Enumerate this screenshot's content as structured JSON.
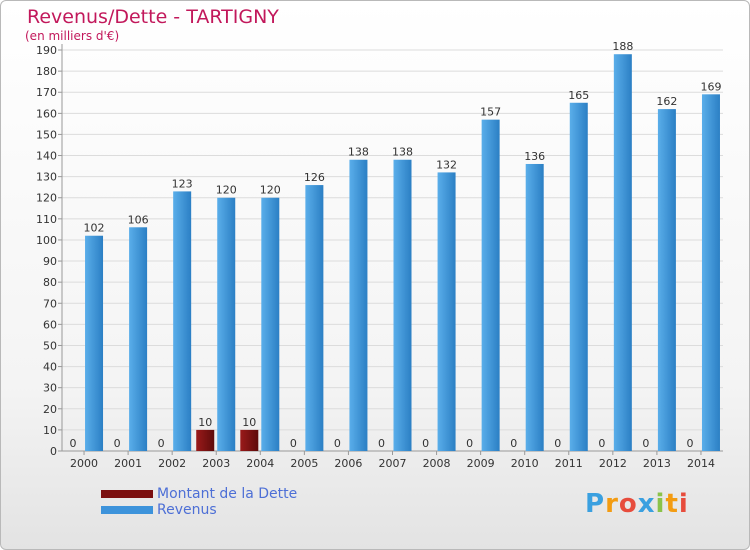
{
  "header": {
    "title": "Revenus/Dette - TARTIGNY",
    "subtitle": "(en milliers d'€)"
  },
  "chart_data": {
    "type": "bar",
    "categories": [
      "2000",
      "2001",
      "2002",
      "2003",
      "2004",
      "2005",
      "2006",
      "2007",
      "2008",
      "2009",
      "2010",
      "2011",
      "2012",
      "2013",
      "2014"
    ],
    "series": [
      {
        "name": "Montant de la Dette",
        "color": "#7b0f0f",
        "values": [
          0,
          0,
          0,
          10,
          10,
          0,
          0,
          0,
          0,
          0,
          0,
          0,
          0,
          0,
          0
        ]
      },
      {
        "name": "Revenus",
        "color": "#3d93db",
        "values": [
          102,
          106,
          123,
          120,
          120,
          126,
          138,
          138,
          132,
          157,
          136,
          165,
          188,
          162,
          169
        ]
      }
    ],
    "ylim": [
      0,
      190
    ],
    "yticks": [
      0,
      10,
      20,
      30,
      40,
      50,
      60,
      70,
      80,
      90,
      100,
      110,
      120,
      130,
      140,
      150,
      160,
      170,
      180,
      190
    ],
    "grid": true,
    "legend_position": "bottom-left"
  },
  "legend": {
    "items": [
      {
        "label": "Montant de la Dette",
        "color": "#7b0f0f"
      },
      {
        "label": "Revenus",
        "color": "#3d93db"
      }
    ]
  },
  "logo": {
    "text": "Proxiti",
    "letter_colors": [
      "#3aa0e0",
      "#f39c12",
      "#e74c3c",
      "#3aa0e0",
      "#8bc34a",
      "#f39c12",
      "#e74c3c"
    ]
  }
}
